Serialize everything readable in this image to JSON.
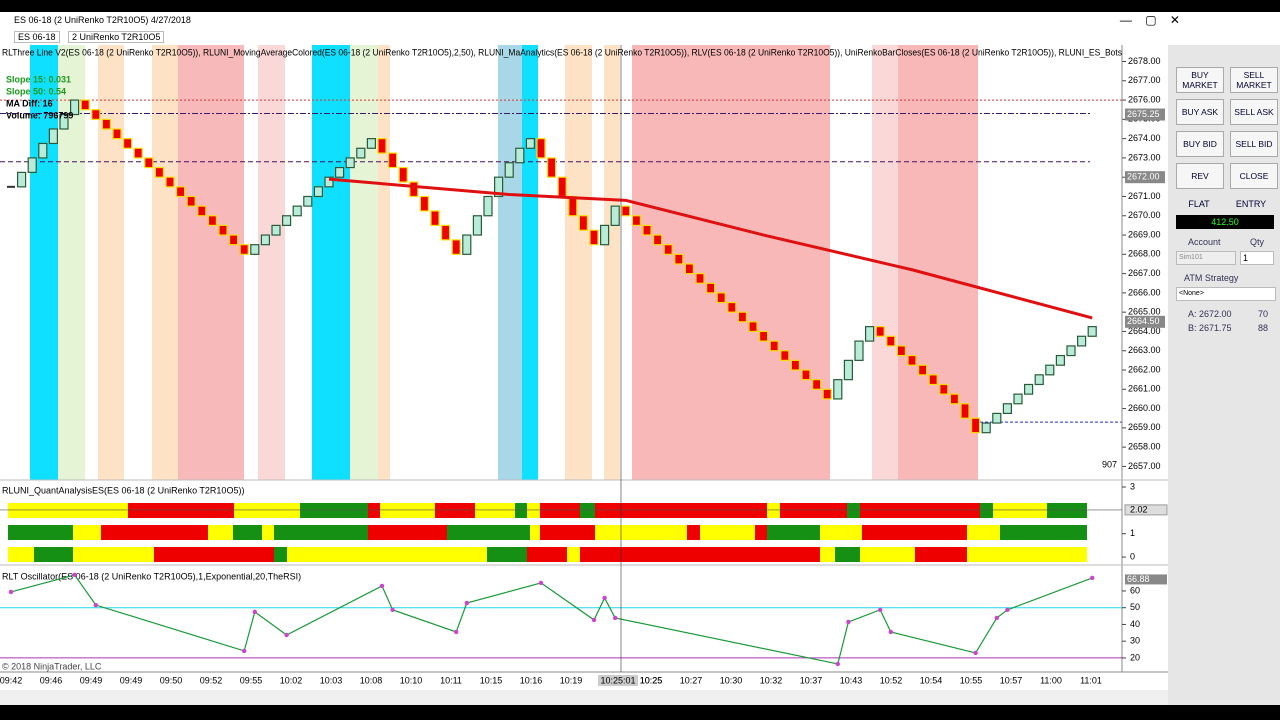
{
  "window": {
    "title": "ES 06-18 (2 UniRenko T2R10O5)  4/27/2018",
    "instrument": "ES 06-18",
    "bar_type": "2 UniRenko T2R10O5"
  },
  "chart_data": [
    {
      "type": "renko",
      "title": "RLThree Line V2(ES 06-18 (2 UniRenko T2R10O5)), RLUNI_MovingAverageColored(ES 06-18 (2 UniRenko T2R10O5),2,50), RLUNI_MaAnalytics(ES 06-18 (2 UniRenko T2R10O5)), RLV(ES 06-18 (2 UniRenko T2R10O5)), UniRenkoBarCloses(ES 06-18 (2 UniRenko T2R10O5)), RLUNI_ES_Bots",
      "up_color": "#b8ecd9",
      "down_color": "#ee0000",
      "closes": [
        2671.5,
        2672.25,
        2673,
        2673.75,
        2674.5,
        2675.25,
        2676,
        2675.5,
        2675,
        2674.5,
        2674,
        2673.5,
        2673,
        2672.5,
        2672,
        2671.5,
        2671,
        2670.5,
        2670,
        2669.5,
        2669,
        2668.5,
        2668,
        2668.5,
        2669,
        2669.5,
        2670,
        2670.5,
        2671,
        2671.5,
        2672,
        2672.5,
        2673,
        2673.5,
        2674,
        2673.25,
        2672.5,
        2671.75,
        2671,
        2670.25,
        2669.5,
        2668.75,
        2668,
        2669,
        2670,
        2671,
        2672,
        2672.75,
        2673.5,
        2674,
        2673,
        2672,
        2671,
        2670,
        2669.25,
        2668.5,
        2669.5,
        2670.5,
        2670,
        2669.5,
        2669,
        2668.5,
        2668,
        2667.5,
        2667,
        2666.5,
        2666,
        2665.5,
        2665,
        2664.5,
        2664,
        2663.5,
        2663,
        2662.5,
        2662,
        2661.5,
        2661,
        2660.5,
        2661.5,
        2662.5,
        2663.5,
        2664.25,
        2663.75,
        2663.25,
        2662.75,
        2662.25,
        2661.75,
        2661.25,
        2660.75,
        2660.25,
        2659.5,
        2658.75,
        2659.25,
        2659.75,
        2660.25,
        2660.75,
        2661.25,
        2661.75,
        2662.25,
        2662.75,
        2663.25,
        2663.75,
        2664.25
      ],
      "ma": {
        "name": "RLUNI_MovingAverageColored",
        "color": "#e01010",
        "x": [
          30,
          47,
          58,
          71,
          85,
          102
        ],
        "values": [
          2671.9,
          2671.1,
          2670.8,
          2669,
          2667.2,
          2664.7
        ]
      },
      "ylim": [
        2656.4,
        2678.7
      ],
      "yticks": [
        {
          "value": 2678,
          "label": "2678.00"
        },
        {
          "value": 2677,
          "label": "2677.00"
        },
        {
          "value": 2676,
          "label": "2676.00"
        },
        {
          "value": 2675,
          "label": "2675.00"
        },
        {
          "value": 2674,
          "label": "2674.00"
        },
        {
          "value": 2673,
          "label": "2673.00"
        },
        {
          "value": 2672,
          "label": "2672.00"
        },
        {
          "value": 2671,
          "label": "2671.00"
        },
        {
          "value": 2670,
          "label": "2670.00"
        },
        {
          "value": 2669,
          "label": "2669.00"
        },
        {
          "value": 2668,
          "label": "2668.00"
        },
        {
          "value": 2667,
          "label": "2667.00"
        },
        {
          "value": 2666,
          "label": "2666.00"
        },
        {
          "value": 2665,
          "label": "2665.00"
        },
        {
          "value": 2664,
          "label": "2664.00"
        },
        {
          "value": 2663,
          "label": "2663.00"
        },
        {
          "value": 2662,
          "label": "2662.00"
        },
        {
          "value": 2661,
          "label": "2661.00"
        },
        {
          "value": 2660,
          "label": "2660.00"
        },
        {
          "value": 2659,
          "label": "2659.00"
        },
        {
          "value": 2658,
          "label": "2658.00"
        },
        {
          "value": 2657,
          "label": "2657.00"
        }
      ],
      "price_tags": [
        {
          "value": 2675.25,
          "label": "2675.25"
        },
        {
          "value": 2672,
          "label": "2672.00"
        },
        {
          "value": 2664.5,
          "label": "2664.50"
        }
      ],
      "overlay_texts": [
        {
          "text": "Slope 15: 0.031",
          "color": "#1a9a1a"
        },
        {
          "text": "Slope 50: 0.54",
          "color": "#1a9a1a"
        },
        {
          "text": "MA Diff:   16",
          "color": "#000000"
        },
        {
          "text": "Volume: 796799",
          "color": "#000000"
        }
      ],
      "corner_value": "907"
    },
    {
      "type": "strip",
      "title": "RLUNI_QuantAnalysisES(ES 06-18 (2 UniRenko T2R10O5))",
      "ylim": [
        -0.34,
        3.3
      ],
      "yticks": [
        0,
        1,
        3
      ],
      "tag": {
        "value": 2.02,
        "label": "2.02"
      }
    },
    {
      "type": "line",
      "title": "RLT Oscillator(ES 06-18 (2 UniRenko T2R10O5),1,Exponential,20,TheRSI)",
      "color": "#cc44cc",
      "x": [
        0,
        6,
        8,
        22,
        23,
        26,
        35,
        36,
        42,
        43,
        50,
        55,
        56,
        57,
        78,
        79,
        82,
        83,
        91,
        93,
        94,
        102
      ],
      "values": [
        59.4,
        69.6,
        51.6,
        24.2,
        47.5,
        33.7,
        63,
        48.7,
        35.5,
        52.8,
        64.8,
        42.7,
        55.8,
        43.9,
        16.4,
        41.5,
        48.7,
        35.5,
        23,
        43.9,
        48.7,
        67.8
      ],
      "ylim": [
        11.6,
        75.5
      ],
      "yticks": [
        20,
        30,
        40,
        50,
        60
      ],
      "tag": {
        "value": 66.88,
        "label": "66.88"
      }
    }
  ],
  "time_labels": [
    "09:42",
    "09:46",
    "09:49",
    "09:49",
    "09:50",
    "09:52",
    "09:55",
    "10:02",
    "10:03",
    "10:08",
    "10:10",
    "10:11",
    "10:15",
    "10:16",
    "10:19",
    "10:25",
    "10:25",
    "10:27",
    "10:30",
    "10:32",
    "10:37",
    "10:43",
    "10:52",
    "10:54",
    "10:55",
    "10:57",
    "11:00",
    "11:01"
  ],
  "crosshair_label": "10:25:01",
  "copyright": "© 2018 NinjaTrader, LLC",
  "order_panel": {
    "buttons": [
      "BUY MARKET",
      "SELL MARKET",
      "BUY ASK",
      "SELL ASK",
      "BUY BID",
      "SELL BID",
      "REV",
      "CLOSE"
    ],
    "flat": "FLAT",
    "entry": "ENTRY",
    "pnl": "412.50",
    "account_label": "Account",
    "qty_label": "Qty",
    "account": "Sim101",
    "qty": "1",
    "atm_label": "ATM Strategy",
    "atm": "<None>",
    "ask": "A: 2672.00",
    "ask_size": "70",
    "bid": "B: 2671.75",
    "bid_size": "88"
  }
}
